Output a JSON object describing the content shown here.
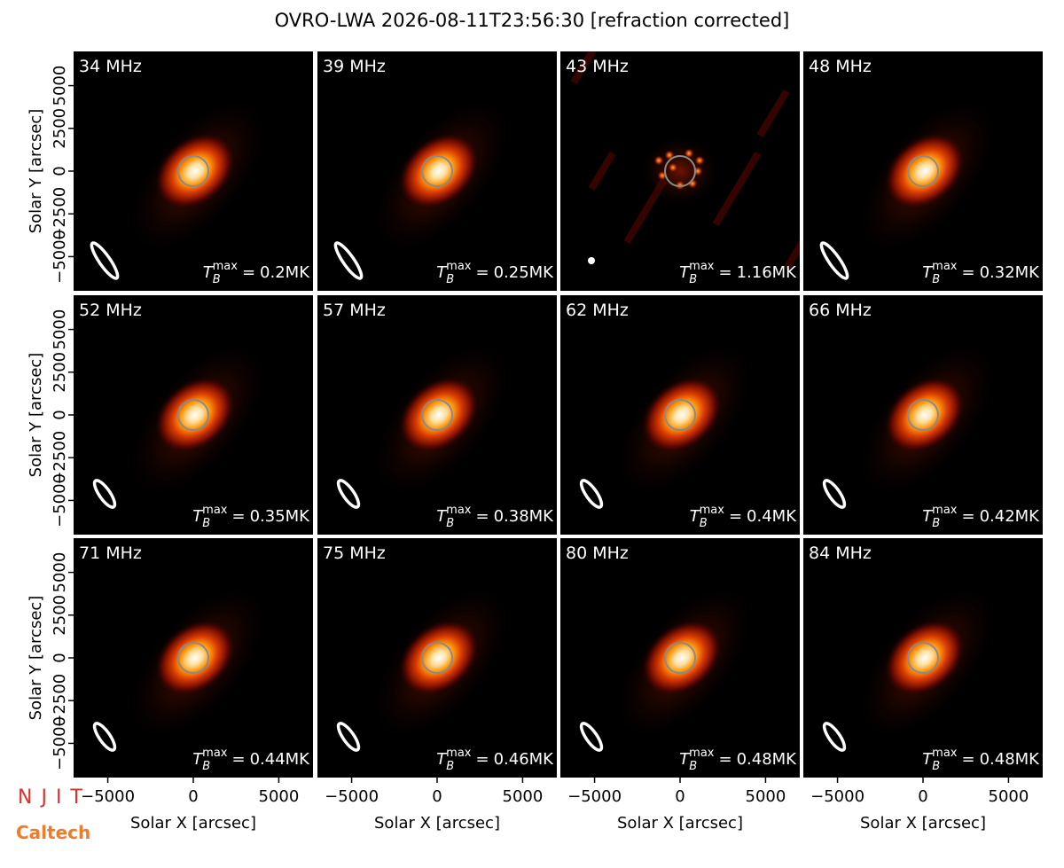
{
  "title": "OVRO-LWA 2026-08-11T23:56:30 [refraction corrected]",
  "x_axis": {
    "label": "Solar X [arcsec]",
    "lim": [
      -7000,
      7000
    ],
    "ticks": [
      {
        "value": -5000,
        "label": "−5000"
      },
      0,
      5000
    ]
  },
  "y_axis": {
    "label": "Solar Y [arcsec]",
    "lim": [
      -7000,
      7000
    ],
    "ticks": [
      {
        "value": -5000,
        "label": "−5000"
      },
      {
        "value": -2500,
        "label": "−2500"
      },
      0,
      2500,
      5000
    ]
  },
  "tmax_symbol": "T",
  "tmax_sub": "B",
  "tmax_sup": "max",
  "tmax_eq": "=",
  "panels": [
    {
      "label": "34 MHz",
      "tmax": "0.2MK"
    },
    {
      "label": "39 MHz",
      "tmax": "0.25MK"
    },
    {
      "label": "43 MHz",
      "tmax": "1.16MK"
    },
    {
      "label": "48 MHz",
      "tmax": "0.32MK"
    },
    {
      "label": "52 MHz",
      "tmax": "0.35MK"
    },
    {
      "label": "57 MHz",
      "tmax": "0.38MK"
    },
    {
      "label": "62 MHz",
      "tmax": "0.4MK"
    },
    {
      "label": "66 MHz",
      "tmax": "0.42MK"
    },
    {
      "label": "71 MHz",
      "tmax": "0.44MK"
    },
    {
      "label": "75 MHz",
      "tmax": "0.46MK"
    },
    {
      "label": "80 MHz",
      "tmax": "0.48MK"
    },
    {
      "label": "84 MHz",
      "tmax": "0.48MK"
    }
  ],
  "logos": [
    "NJIT",
    "Caltech"
  ]
}
